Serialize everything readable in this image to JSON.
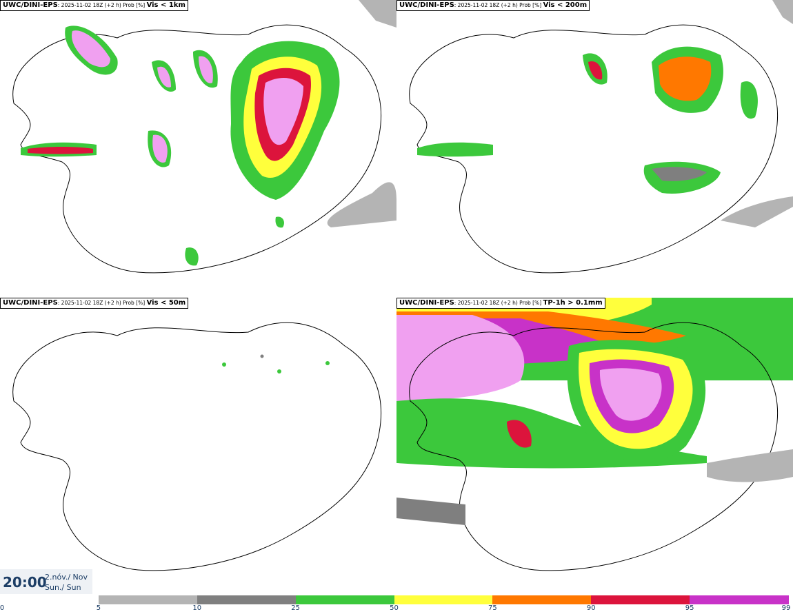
{
  "panels": [
    {
      "model": "UWC/DINI-EPS",
      "info": ": 2025-11-02 18Z (+2 h) Prob [%] ",
      "param": "Vis < 1km"
    },
    {
      "model": "UWC/DINI-EPS",
      "info": ": 2025-11-02 18Z (+2 h) Prob [%] ",
      "param": "Vis < 200m"
    },
    {
      "model": "UWC/DINI-EPS",
      "info": ": 2025-11-02 18Z (+2 h) Prob [%] ",
      "param": "Vis < 50m"
    },
    {
      "model": "UWC/DINI-EPS",
      "info": ": 2025-11-02 18Z (+2 h) Prob [%] ",
      "param": "TP-1h > 0.1mm"
    }
  ],
  "timestamp": {
    "time": "20:00",
    "date_line1": "2.nóv./ Nov",
    "date_line2": "Sun./ Sun"
  },
  "colorbar": {
    "ticks": [
      "0",
      "5",
      "10",
      "25",
      "50",
      "75",
      "90",
      "95",
      "99"
    ],
    "colors": [
      "#ffffff",
      "#b4b4b4",
      "#7f7f7f",
      "#3cc83c",
      "#ffff3c",
      "#ff7800",
      "#dc143c",
      "#c832c8",
      "#f0a0f0"
    ]
  }
}
